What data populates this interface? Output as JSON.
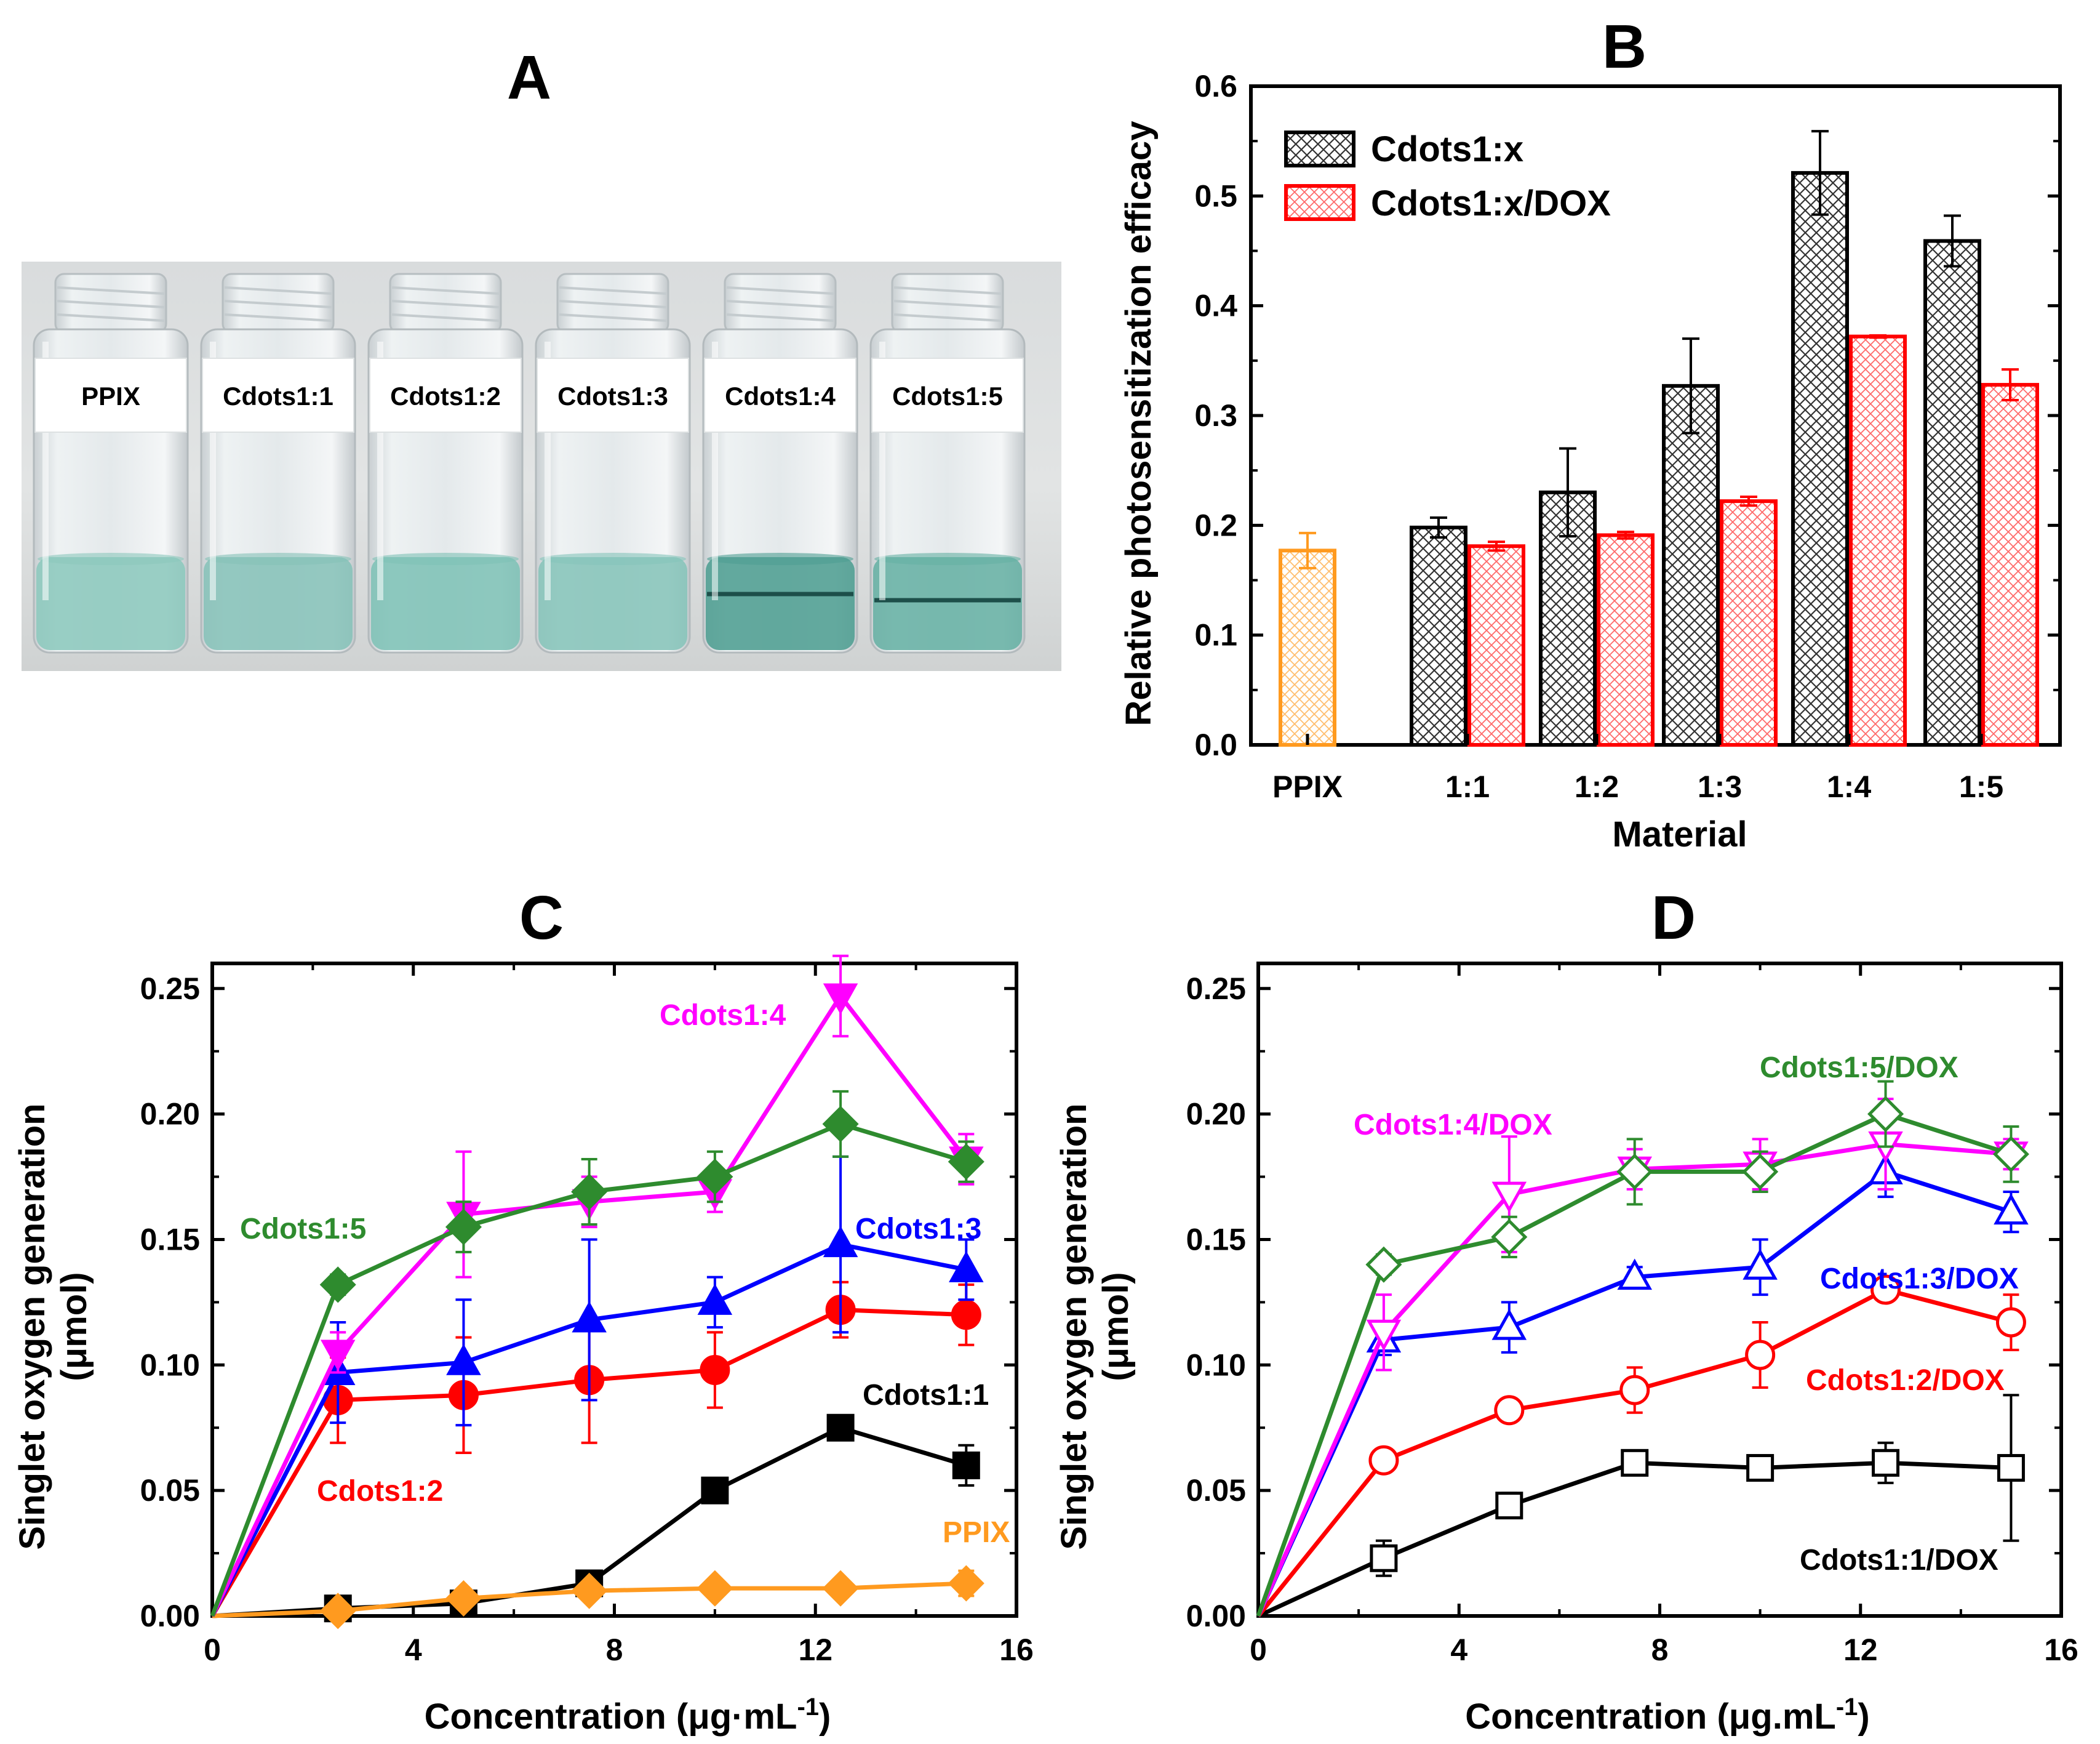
{
  "panels": {
    "A": {
      "letter": "A",
      "vials": [
        {
          "label": "PPIX",
          "liquid": "#8cc8bd"
        },
        {
          "label": "Cdots1:1",
          "liquid": "#86c2b8"
        },
        {
          "label": "Cdots1:2",
          "liquid": "#7ec2b6"
        },
        {
          "label": "Cdots1:3",
          "liquid": "#86c4ba"
        },
        {
          "label": "Cdots1:4",
          "liquid": "#4e9e92"
        },
        {
          "label": "Cdots1:5",
          "liquid": "#66b0a4"
        }
      ]
    }
  },
  "colors": {
    "black": "#000000",
    "red": "#ff0000",
    "blue": "#0000ff",
    "magenta": "#ff00ff",
    "green": "#2e8b2e",
    "orange": "#ff9a1f"
  },
  "chart_data": [
    {
      "id": "B",
      "letter": "B",
      "type": "bar",
      "title": "",
      "xlabel": "Material",
      "ylabel": "Relative photosensitization efficacy",
      "ylim": [
        0,
        0.6
      ],
      "yticks": [
        "0.0",
        "0.1",
        "0.2",
        "0.3",
        "0.4",
        "0.5",
        "0.6"
      ],
      "categories": [
        "PPIX",
        "1:1",
        "1:2",
        "1:3",
        "1:4",
        "1:5"
      ],
      "ppix": {
        "name": "PPIX",
        "value": 0.177,
        "error": 0.016,
        "color": "#ff9a1f"
      },
      "series": [
        {
          "name": "Cdots1:x",
          "color": "#000000",
          "values": [
            null,
            0.198,
            0.23,
            0.327,
            0.521,
            0.459
          ],
          "errors": [
            null,
            0.009,
            0.04,
            0.043,
            0.038,
            0.023
          ]
        },
        {
          "name": "Cdots1:x/DOX",
          "color": "#ff0000",
          "values": [
            null,
            0.181,
            0.191,
            0.222,
            0.372,
            0.328
          ],
          "errors": [
            null,
            0.004,
            0.003,
            0.004,
            0.001,
            0.014
          ]
        }
      ],
      "legend_position": "top-left"
    },
    {
      "id": "C",
      "letter": "C",
      "type": "line",
      "title": "",
      "xlabel_main": "Concentration (",
      "xlabel_unit": "μg·mL",
      "xlabel_exp": "-1",
      "xlabel_close": ")",
      "ylabel": "Singlet oxygen generation",
      "ylabel2": "(μmol)",
      "xlim": [
        0,
        16
      ],
      "ylim": [
        0,
        0.26
      ],
      "xticks": [
        "0",
        "4",
        "8",
        "12",
        "16"
      ],
      "yticks": [
        "0.00",
        "0.05",
        "0.10",
        "0.15",
        "0.20",
        "0.25"
      ],
      "x": [
        0,
        2.5,
        5,
        7.5,
        10,
        12.5,
        15
      ],
      "series": [
        {
          "name": "Cdots1:1",
          "label": "Cdots1:1",
          "color": "#000000",
          "marker": "square",
          "filled": true,
          "values": [
            0,
            0.003,
            0.005,
            0.013,
            0.05,
            0.075,
            0.06
          ],
          "errors": [
            0,
            0.003,
            0.003,
            0.004,
            0.003,
            0.004,
            0.008
          ]
        },
        {
          "name": "PPIX",
          "label": "PPIX",
          "color": "#ff9a1f",
          "marker": "diamond",
          "filled": true,
          "values": [
            0,
            0.002,
            0.007,
            0.01,
            0.011,
            0.011,
            0.013
          ],
          "errors": [
            0,
            0.002,
            0.003,
            0.003,
            0.003,
            0.003,
            0.005
          ]
        },
        {
          "name": "Cdots1:2",
          "label": "Cdots1:2",
          "color": "#ff0000",
          "marker": "circle",
          "filled": true,
          "values": [
            0,
            0.086,
            0.088,
            0.094,
            0.098,
            0.122,
            0.12
          ],
          "errors": [
            0,
            0.017,
            0.023,
            0.025,
            0.015,
            0.011,
            0.012
          ]
        },
        {
          "name": "Cdots1:3",
          "label": "Cdots1:3",
          "color": "#0000ff",
          "marker": "triangle-up",
          "filled": true,
          "values": [
            0,
            0.097,
            0.101,
            0.118,
            0.125,
            0.148,
            0.138
          ],
          "errors": [
            0,
            0.02,
            0.025,
            0.032,
            0.01,
            0.035,
            0.012
          ]
        },
        {
          "name": "Cdots1:4",
          "label": "Cdots1:4",
          "color": "#ff00ff",
          "marker": "triangle-down",
          "filled": true,
          "values": [
            0,
            0.105,
            0.16,
            0.165,
            0.169,
            0.247,
            0.182
          ],
          "errors": [
            0,
            0.008,
            0.025,
            0.01,
            0.008,
            0.016,
            0.01
          ]
        },
        {
          "name": "Cdots1:5",
          "label": "Cdots1:5",
          "color": "#2e8b2e",
          "marker": "diamond",
          "filled": true,
          "values": [
            0,
            0.132,
            0.155,
            0.169,
            0.175,
            0.196,
            0.181
          ],
          "errors": [
            0,
            0.004,
            0.01,
            0.013,
            0.01,
            0.013,
            0.008
          ]
        }
      ]
    },
    {
      "id": "D",
      "letter": "D",
      "type": "line",
      "title": "",
      "xlabel_main": "Concentration (",
      "xlabel_unit": "μg.mL",
      "xlabel_exp": "-1",
      "xlabel_close": ")",
      "ylabel": "Singlet oxygen generation",
      "ylabel2": "(μmol)",
      "xlim": [
        0,
        16
      ],
      "ylim": [
        0,
        0.26
      ],
      "xticks": [
        "0",
        "4",
        "8",
        "12",
        "16"
      ],
      "yticks": [
        "0.00",
        "0.05",
        "0.10",
        "0.15",
        "0.20",
        "0.25"
      ],
      "x": [
        0,
        2.5,
        5,
        7.5,
        10,
        12.5,
        15
      ],
      "series": [
        {
          "name": "Cdots1:1/DOX",
          "label": "Cdots1:1/DOX",
          "color": "#000000",
          "marker": "square",
          "filled": false,
          "values": [
            0,
            0.023,
            0.044,
            0.061,
            0.059,
            0.061,
            0.059
          ],
          "errors": [
            0,
            0.007,
            0.005,
            0.004,
            0.004,
            0.008,
            0.029
          ]
        },
        {
          "name": "Cdots1:2/DOX",
          "label": "Cdots1:2/DOX",
          "color": "#ff0000",
          "marker": "circle",
          "filled": false,
          "values": [
            0,
            0.062,
            0.082,
            0.09,
            0.104,
            0.13,
            0.117
          ],
          "errors": [
            0,
            0.004,
            0.004,
            0.009,
            0.013,
            0.004,
            0.011
          ]
        },
        {
          "name": "Cdots1:3/DOX",
          "label": "Cdots1:3/DOX",
          "color": "#0000ff",
          "marker": "triangle-up",
          "filled": false,
          "values": [
            0,
            0.11,
            0.115,
            0.135,
            0.139,
            0.177,
            0.161
          ],
          "errors": [
            0,
            0.006,
            0.01,
            0.004,
            0.011,
            0.01,
            0.008
          ]
        },
        {
          "name": "Cdots1:4/DOX",
          "label": "Cdots1:4/DOX",
          "color": "#ff00ff",
          "marker": "triangle-down",
          "filled": false,
          "values": [
            0,
            0.113,
            0.168,
            0.178,
            0.18,
            0.188,
            0.184
          ],
          "errors": [
            0,
            0.015,
            0.023,
            0.008,
            0.01,
            0.018,
            0.006
          ]
        },
        {
          "name": "Cdots1:5/DOX",
          "label": "Cdots1:5/DOX",
          "color": "#2e8b2e",
          "marker": "diamond",
          "filled": false,
          "values": [
            0,
            0.14,
            0.151,
            0.177,
            0.177,
            0.2,
            0.184
          ],
          "errors": [
            0,
            0.004,
            0.008,
            0.013,
            0.008,
            0.013,
            0.011
          ]
        }
      ]
    }
  ]
}
